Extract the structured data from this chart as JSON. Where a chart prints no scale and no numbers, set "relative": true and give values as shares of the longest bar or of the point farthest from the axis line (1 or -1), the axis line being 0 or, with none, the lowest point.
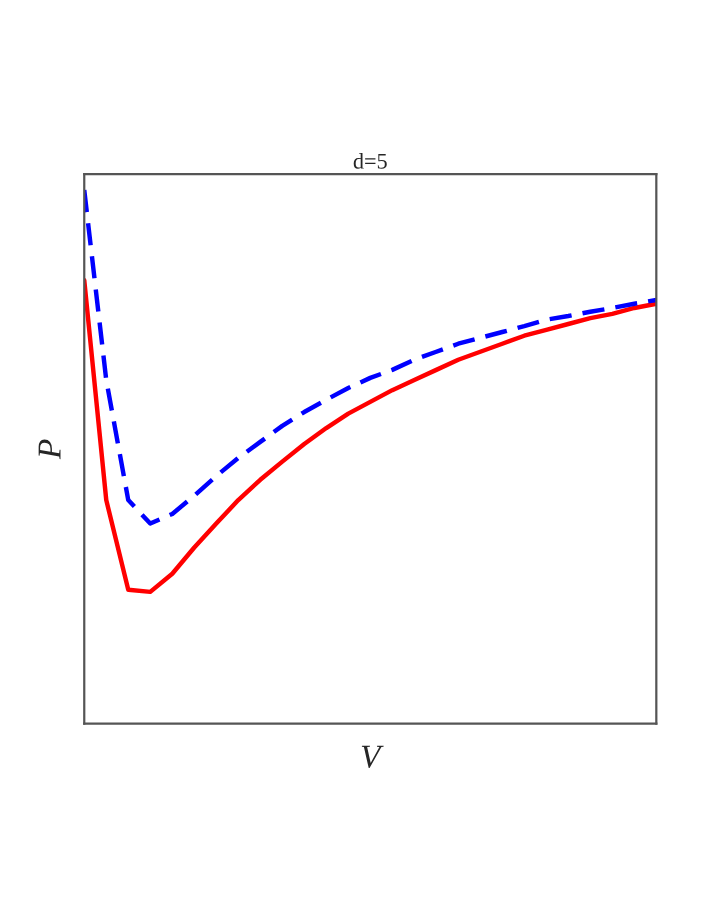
{
  "chart_data": {
    "type": "line",
    "title": "d=5",
    "xlabel": "V",
    "ylabel": "P",
    "relative": true,
    "grid": false,
    "legend": false,
    "marker": "none",
    "categories": [
      null,
      null,
      null,
      null,
      null,
      null,
      null,
      null,
      null,
      null,
      null,
      null,
      null,
      null,
      null,
      null,
      null,
      null,
      null,
      null,
      null,
      null,
      null,
      null,
      null,
      null,
      null
    ],
    "series": [
      {
        "color": "#ff0000",
        "line_style": "solid",
        "values": [
          0.831,
          0.419,
          0.251,
          0.247,
          0.281,
          0.33,
          0.375,
          0.419,
          0.457,
          0.491,
          0.524,
          0.554,
          0.581,
          0.603,
          0.625,
          0.644,
          0.663,
          0.682,
          0.697,
          0.712,
          0.727,
          0.738,
          0.749,
          0.76,
          0.768,
          0.779,
          0.787
        ]
      },
      {
        "color": "#0000ff",
        "line_style": "dashed",
        "values": [
          1.0,
          0.644,
          0.419,
          0.375,
          0.393,
          0.427,
          0.464,
          0.498,
          0.528,
          0.558,
          0.584,
          0.607,
          0.629,
          0.648,
          0.663,
          0.682,
          0.697,
          0.712,
          0.723,
          0.734,
          0.745,
          0.757,
          0.764,
          0.772,
          0.779,
          0.787,
          0.794
        ]
      }
    ]
  }
}
